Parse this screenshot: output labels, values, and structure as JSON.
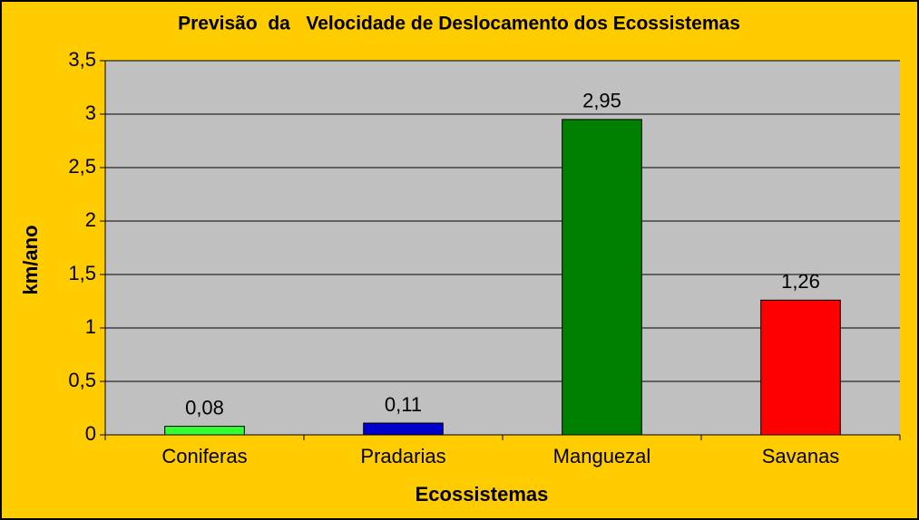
{
  "chart_data": {
    "type": "bar",
    "title": "Previsão  da   Velocidade de Deslocamento dos Ecossistemas",
    "x_label": "Ecossistemas",
    "y_label": "km/ano",
    "categories": [
      "Coniferas",
      "Pradarias",
      "Manguezal",
      "Savanas"
    ],
    "values": [
      0.08,
      0.11,
      2.95,
      1.26
    ],
    "value_labels": [
      "0,08",
      "0,11",
      "2,95",
      "1,26"
    ],
    "colors": [
      "#33ff33",
      "#0000cc",
      "#008000",
      "#ff0000"
    ],
    "ylim": [
      0,
      3.5
    ],
    "yticks": [
      0,
      {
        "value": 0.5,
        "label": "0,5"
      },
      1,
      {
        "value": 1.5,
        "label": "1,5"
      },
      2,
      {
        "value": 2.5,
        "label": "2,5"
      },
      3,
      {
        "value": 3.5,
        "label": "3,5"
      }
    ],
    "grid": true
  }
}
